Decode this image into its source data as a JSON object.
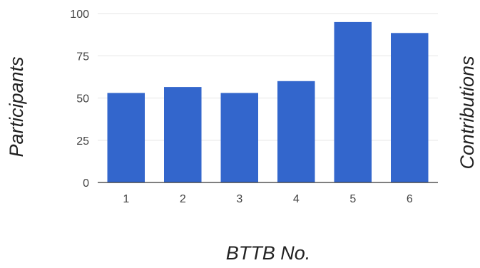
{
  "chart_data": {
    "type": "bar",
    "categories": [
      "1",
      "2",
      "3",
      "4",
      "5",
      "6"
    ],
    "values": [
      53,
      56.5,
      53,
      60,
      95,
      88.5
    ],
    "title": "",
    "xlabel": "BTTB No.",
    "ylabel": "Participants",
    "y2label": "Contributions",
    "ylim": [
      0,
      100
    ],
    "yticks": [
      0,
      25,
      50,
      75,
      100
    ],
    "grid": true,
    "legend": "none",
    "colors": {
      "bar": "#3366CC",
      "grid": "#E6E6E6",
      "axis": "#333333"
    }
  }
}
